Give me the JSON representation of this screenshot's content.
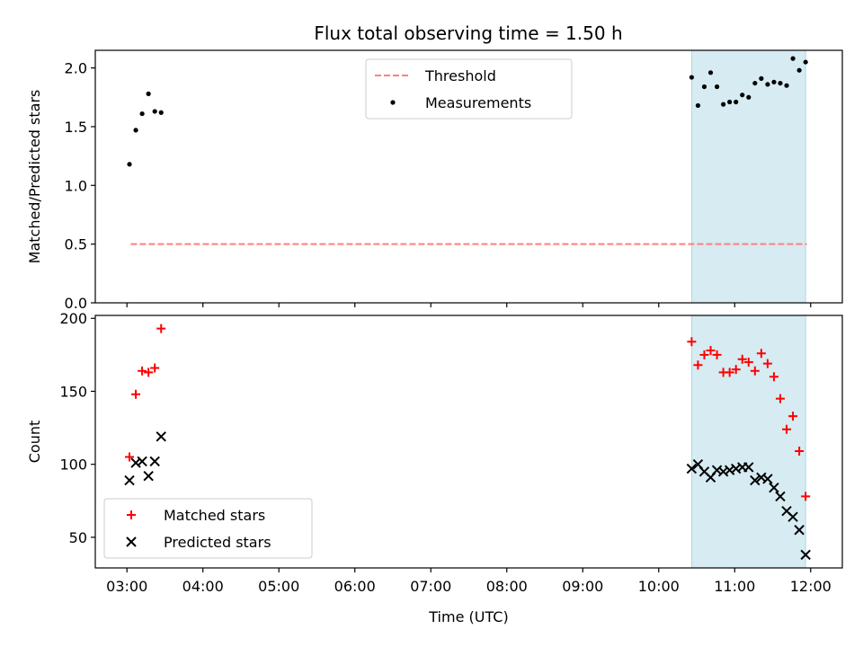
{
  "title": "Flux total observing time = 1.50 h",
  "colors": {
    "threshold": "#ff7f7f",
    "measurement": "#000000",
    "matched": "#ff0000",
    "predicted": "#000000",
    "shade": "#add8e6"
  },
  "chart_data": [
    {
      "type": "scatter",
      "ylabel": "Matched/Predicted stars",
      "xlim": [
        "02:35",
        "12:25"
      ],
      "ylim": [
        0,
        2.15
      ],
      "yticks": [
        0.0,
        0.5,
        1.0,
        1.5,
        2.0
      ],
      "ytick_labels": [
        "0.0",
        "0.5",
        "1.0",
        "1.5",
        "2.0"
      ],
      "shaded_x_range": [
        "10:26",
        "11:56"
      ],
      "legend": {
        "position": "top-center",
        "entries": [
          {
            "label": "Threshold",
            "marker": "dashed-line"
          },
          {
            "label": "Measurements",
            "marker": "dot"
          }
        ]
      },
      "threshold": {
        "value": 0.5,
        "x": [
          "03:03",
          "11:57"
        ]
      },
      "series": [
        {
          "name": "Measurements",
          "x": [
            "03:02",
            "03:07",
            "03:12",
            "03:17",
            "03:22",
            "03:27",
            "10:26",
            "10:31",
            "10:36",
            "10:41",
            "10:46",
            "10:51",
            "10:56",
            "11:01",
            "11:06",
            "11:11",
            "11:16",
            "11:21",
            "11:26",
            "11:31",
            "11:36",
            "11:41",
            "11:46",
            "11:51",
            "11:56"
          ],
          "y": [
            1.18,
            1.47,
            1.61,
            1.78,
            1.63,
            1.62,
            1.92,
            1.68,
            1.84,
            1.96,
            1.84,
            1.69,
            1.71,
            1.71,
            1.77,
            1.75,
            1.87,
            1.91,
            1.86,
            1.88,
            1.87,
            1.85,
            2.08,
            1.98,
            2.05
          ]
        }
      ]
    },
    {
      "type": "scatter",
      "xlabel": "Time (UTC)",
      "ylabel": "Count",
      "xlim": [
        "02:35",
        "12:25"
      ],
      "ylim": [
        29,
        202
      ],
      "yticks": [
        50,
        100,
        150,
        200
      ],
      "ytick_labels": [
        "50",
        "100",
        "150",
        "200"
      ],
      "xticks": [
        "03:00",
        "04:00",
        "05:00",
        "06:00",
        "07:00",
        "08:00",
        "09:00",
        "10:00",
        "11:00",
        "12:00"
      ],
      "shaded_x_range": [
        "10:26",
        "11:56"
      ],
      "legend": {
        "position": "lower-left",
        "entries": [
          {
            "label": "Matched stars",
            "marker": "plus"
          },
          {
            "label": "Predicted stars",
            "marker": "x"
          }
        ]
      },
      "series": [
        {
          "name": "Matched stars",
          "x": [
            "03:02",
            "03:07",
            "03:12",
            "03:17",
            "03:22",
            "03:27",
            "10:26",
            "10:31",
            "10:36",
            "10:41",
            "10:46",
            "10:51",
            "10:56",
            "11:01",
            "11:06",
            "11:11",
            "11:16",
            "11:21",
            "11:26",
            "11:31",
            "11:36",
            "11:41",
            "11:46",
            "11:51",
            "11:56"
          ],
          "y": [
            105,
            148,
            164,
            163,
            166,
            193,
            184,
            168,
            175,
            178,
            175,
            163,
            163,
            165,
            172,
            170,
            164,
            176,
            169,
            160,
            145,
            124,
            133,
            109,
            78
          ]
        },
        {
          "name": "Predicted stars",
          "x": [
            "03:02",
            "03:07",
            "03:12",
            "03:17",
            "03:22",
            "03:27",
            "10:26",
            "10:31",
            "10:36",
            "10:41",
            "10:46",
            "10:51",
            "10:56",
            "11:01",
            "11:06",
            "11:11",
            "11:16",
            "11:21",
            "11:26",
            "11:31",
            "11:36",
            "11:41",
            "11:46",
            "11:51",
            "11:56"
          ],
          "y": [
            89,
            101,
            102,
            92,
            102,
            119,
            97,
            100,
            95,
            91,
            96,
            95,
            96,
            97,
            98,
            98,
            89,
            91,
            90,
            84,
            78,
            68,
            64,
            55,
            38
          ]
        }
      ]
    }
  ]
}
